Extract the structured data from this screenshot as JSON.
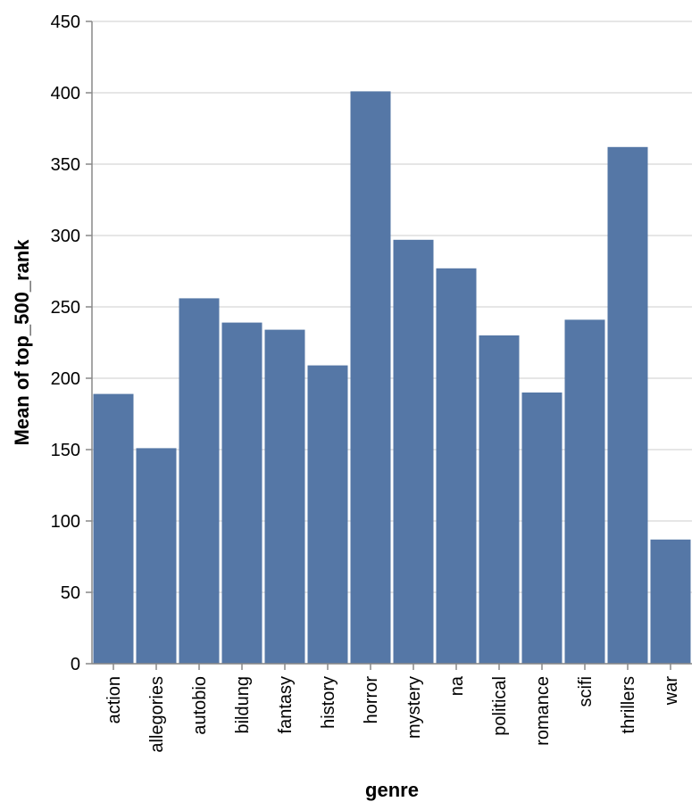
{
  "chart_data": {
    "type": "bar",
    "categories": [
      "action",
      "allegories",
      "autobio",
      "bildung",
      "fantasy",
      "history",
      "horror",
      "mystery",
      "na",
      "political",
      "romance",
      "scifi",
      "thrillers",
      "war"
    ],
    "values": [
      189,
      151,
      256,
      239,
      234,
      209,
      401,
      297,
      277,
      230,
      190,
      241,
      362,
      87
    ],
    "xlabel": "genre",
    "ylabel": "Mean of top_500_rank",
    "ylim": [
      0,
      450
    ],
    "yticks": [
      0,
      50,
      100,
      150,
      200,
      250,
      300,
      350,
      400,
      450
    ],
    "grid": true,
    "bar_color": "#5577a6"
  }
}
